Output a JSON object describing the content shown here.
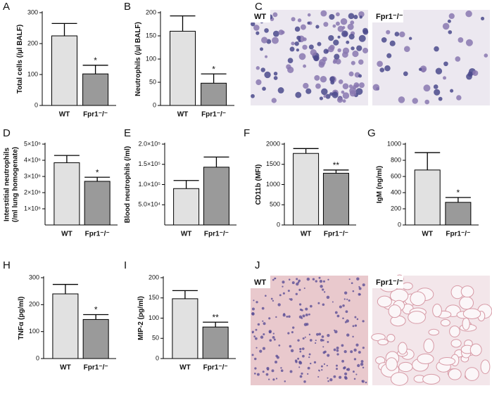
{
  "chart_data": [
    {
      "type": "bar",
      "panel": "A",
      "ylabel": [
        "Total cells (/µl BALF)"
      ],
      "categories": [
        "WT",
        "Fpr1⁻/⁻"
      ],
      "values": [
        225,
        102
      ],
      "errors": [
        40,
        28
      ],
      "annotations": [
        null,
        "*"
      ],
      "colors": [
        "#e1e1e1",
        "#9a9a9a"
      ],
      "ylim": [
        0,
        300
      ],
      "yticks": [
        0,
        100,
        200,
        300
      ]
    },
    {
      "type": "bar",
      "panel": "B",
      "ylabel": [
        "Neutrophils (/µl BALF)"
      ],
      "categories": [
        "WT",
        "Fpr1⁻/⁻"
      ],
      "values": [
        160,
        48
      ],
      "errors": [
        33,
        20
      ],
      "annotations": [
        null,
        "*"
      ],
      "colors": [
        "#e1e1e1",
        "#9a9a9a"
      ],
      "ylim": [
        0,
        200
      ],
      "yticks": [
        0,
        50,
        100,
        150,
        200
      ]
    },
    {
      "type": "bar",
      "panel": "D",
      "ylabel": [
        "Interstitial neutrophils",
        "(/ml lung homogenate)"
      ],
      "categories": [
        "WT",
        "Fpr1⁻/⁻"
      ],
      "values": [
        3850000,
        2700000
      ],
      "errors": [
        450000,
        250000
      ],
      "annotations": [
        null,
        "*"
      ],
      "colors": [
        "#e1e1e1",
        "#9a9a9a"
      ],
      "ylim": [
        0,
        5000000
      ],
      "yticks": [
        {
          "value": 1000000,
          "label": "1×10⁶"
        },
        {
          "value": 2000000,
          "label": "2×10⁶"
        },
        {
          "value": 3000000,
          "label": "3×10⁶"
        },
        {
          "value": 4000000,
          "label": "4×10⁶"
        },
        {
          "value": 5000000,
          "label": "5×10⁶"
        }
      ]
    },
    {
      "type": "bar",
      "panel": "E",
      "ylabel": [
        "Blood neutrophils (/ml)"
      ],
      "categories": [
        "WT",
        "Fpr1⁻/⁻"
      ],
      "values": [
        90000,
        143000
      ],
      "errors": [
        20000,
        25000
      ],
      "annotations": [
        null,
        null
      ],
      "colors": [
        "#e1e1e1",
        "#9a9a9a"
      ],
      "ylim": [
        0,
        200000
      ],
      "yticks": [
        {
          "value": 50000,
          "label": "5.0×10⁴"
        },
        {
          "value": 100000,
          "label": "1.0×10⁵"
        },
        {
          "value": 150000,
          "label": "1.5×10⁵"
        },
        {
          "value": 200000,
          "label": "2.0×10⁵"
        }
      ]
    },
    {
      "type": "bar",
      "panel": "F",
      "ylabel": [
        "CD11b (MFI)"
      ],
      "categories": [
        "WT",
        "Fpr1⁻/⁻"
      ],
      "values": [
        1770,
        1280
      ],
      "errors": [
        120,
        80
      ],
      "annotations": [
        null,
        "**"
      ],
      "colors": [
        "#e1e1e1",
        "#9a9a9a"
      ],
      "ylim": [
        0,
        2000
      ],
      "yticks": [
        0,
        500,
        1000,
        1500,
        2000
      ]
    },
    {
      "type": "bar",
      "panel": "G",
      "ylabel": [
        "IgM (ng/ml)"
      ],
      "categories": [
        "WT",
        "Fpr1⁻/⁻"
      ],
      "values": [
        680,
        280
      ],
      "errors": [
        215,
        60
      ],
      "annotations": [
        null,
        "*"
      ],
      "colors": [
        "#e1e1e1",
        "#9a9a9a"
      ],
      "ylim": [
        0,
        1000
      ],
      "yticks": [
        0,
        200,
        400,
        600,
        800,
        1000
      ]
    },
    {
      "type": "bar",
      "panel": "H",
      "ylabel": [
        "TNFα (pg/ml)"
      ],
      "categories": [
        "WT",
        "Fpr1⁻/⁻"
      ],
      "values": [
        240,
        145
      ],
      "errors": [
        35,
        18
      ],
      "annotations": [
        null,
        "*"
      ],
      "colors": [
        "#e1e1e1",
        "#9a9a9a"
      ],
      "ylim": [
        0,
        300
      ],
      "yticks": [
        0,
        100,
        200,
        300
      ]
    },
    {
      "type": "bar",
      "panel": "I",
      "ylabel": [
        "MIP-2 (pg/ml)"
      ],
      "categories": [
        "WT",
        "Fpr1⁻/⁻"
      ],
      "values": [
        148,
        78
      ],
      "errors": [
        20,
        12
      ],
      "annotations": [
        null,
        "**"
      ],
      "colors": [
        "#e1e1e1",
        "#9a9a9a"
      ],
      "ylim": [
        0,
        200
      ],
      "yticks": [
        0,
        50,
        100,
        150,
        200
      ]
    }
  ],
  "images": [
    {
      "panel": "C",
      "labels": [
        "WT",
        "Fpr1⁻/⁻"
      ]
    },
    {
      "panel": "J",
      "labels": [
        "WT",
        "Fpr1⁻/⁻"
      ]
    }
  ]
}
